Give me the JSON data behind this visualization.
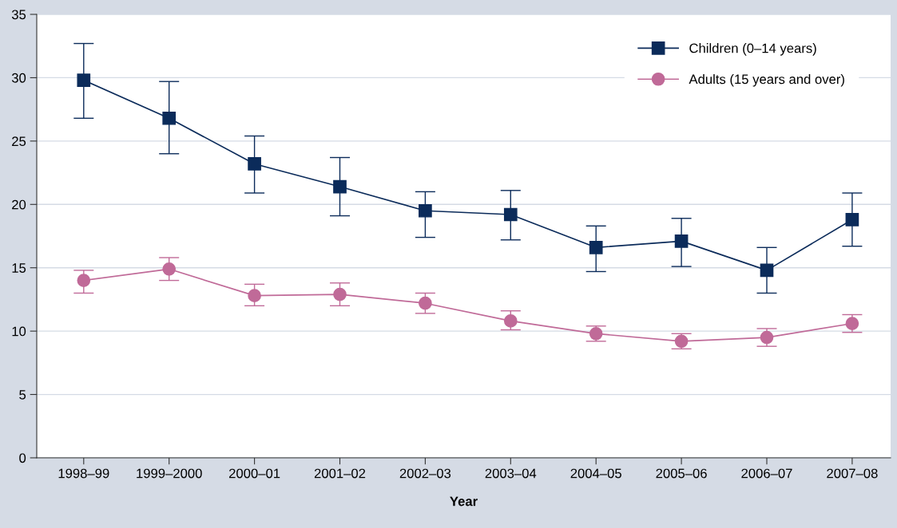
{
  "chart_data": {
    "type": "line",
    "xlabel": "Year",
    "categories": [
      "1998–99",
      "1999–2000",
      "2000–01",
      "2001–02",
      "2002–03",
      "2003–04",
      "2004–05",
      "2005–06",
      "2006–07",
      "2007–08"
    ],
    "series": [
      {
        "name": "Children (0–14 years)",
        "color": "#0b2b5a",
        "marker": "square",
        "values": [
          29.8,
          26.8,
          23.2,
          21.4,
          19.5,
          19.2,
          16.6,
          17.1,
          14.8,
          18.8
        ],
        "errors": [
          [
            26.8,
            32.7
          ],
          [
            24.0,
            29.7
          ],
          [
            20.9,
            25.4
          ],
          [
            19.1,
            23.7
          ],
          [
            17.4,
            21.0
          ],
          [
            17.2,
            21.1
          ],
          [
            14.7,
            18.3
          ],
          [
            15.1,
            18.9
          ],
          [
            13.0,
            16.6
          ],
          [
            16.7,
            20.9
          ]
        ]
      },
      {
        "name": "Adults (15 years and over)",
        "color": "#c06a98",
        "marker": "circle",
        "values": [
          14.0,
          14.9,
          12.8,
          12.9,
          12.2,
          10.8,
          9.8,
          9.2,
          9.5,
          10.6
        ],
        "errors": [
          [
            13.0,
            14.8
          ],
          [
            14.0,
            15.8
          ],
          [
            12.0,
            13.7
          ],
          [
            12.0,
            13.8
          ],
          [
            11.4,
            13.0
          ],
          [
            10.1,
            11.6
          ],
          [
            9.2,
            10.4
          ],
          [
            8.6,
            9.8
          ],
          [
            8.8,
            10.2
          ],
          [
            9.9,
            11.3
          ]
        ]
      }
    ],
    "ylim": [
      0,
      35
    ],
    "yticks": [
      0,
      5,
      10,
      15,
      20,
      25,
      30,
      35
    ],
    "grid": "y",
    "legend": "top right",
    "line_style": "solid"
  }
}
